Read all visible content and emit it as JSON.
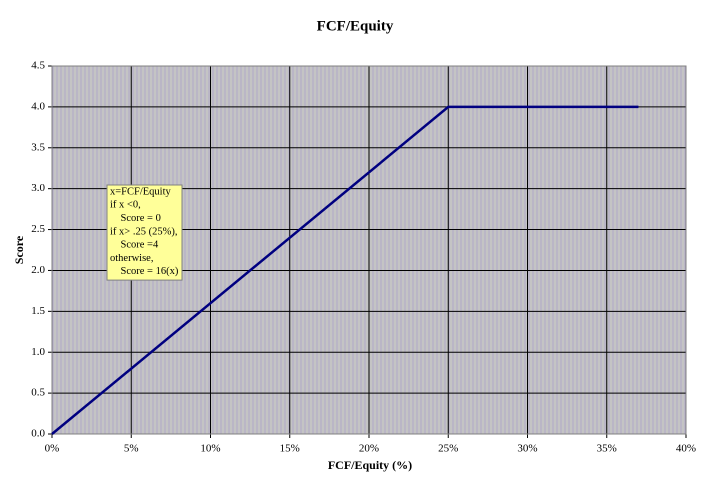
{
  "chart_data": {
    "type": "line",
    "title": "FCF/Equity",
    "x_label": "FCF/Equity (%)",
    "y_label": "Score",
    "x": [
      0,
      25,
      37
    ],
    "series": [
      {
        "name": "Score",
        "color": "#000080",
        "values": [
          0,
          4,
          4
        ]
      }
    ],
    "xlim": [
      0,
      40
    ],
    "xticks": [
      {
        "value": 0,
        "label": "0%"
      },
      {
        "value": 5,
        "label": "5%"
      },
      {
        "value": 10,
        "label": "10%"
      },
      {
        "value": 15,
        "label": "15%"
      },
      {
        "value": 20,
        "label": "20%"
      },
      {
        "value": 25,
        "label": "25%"
      },
      {
        "value": 30,
        "label": "30%"
      },
      {
        "value": 35,
        "label": "35%"
      },
      {
        "value": 40,
        "label": "40%"
      }
    ],
    "ylim": [
      0,
      4.5
    ],
    "yticks": [
      {
        "value": 0,
        "label": "0.0"
      },
      0.5,
      {
        "value": 1,
        "label": "1.0"
      },
      1.5,
      {
        "value": 2,
        "label": "2.0"
      },
      2.5,
      {
        "value": 3,
        "label": "3.0"
      },
      3.5,
      {
        "value": 4,
        "label": "4.0"
      },
      4.5
    ],
    "grid": true,
    "annotation": [
      "x=FCF/Equity",
      "if x <0,",
      "    Score = 0",
      "if x> .25 (25%),",
      "    Score =4",
      "otherwise,",
      "    Score = 16(x)"
    ]
  }
}
